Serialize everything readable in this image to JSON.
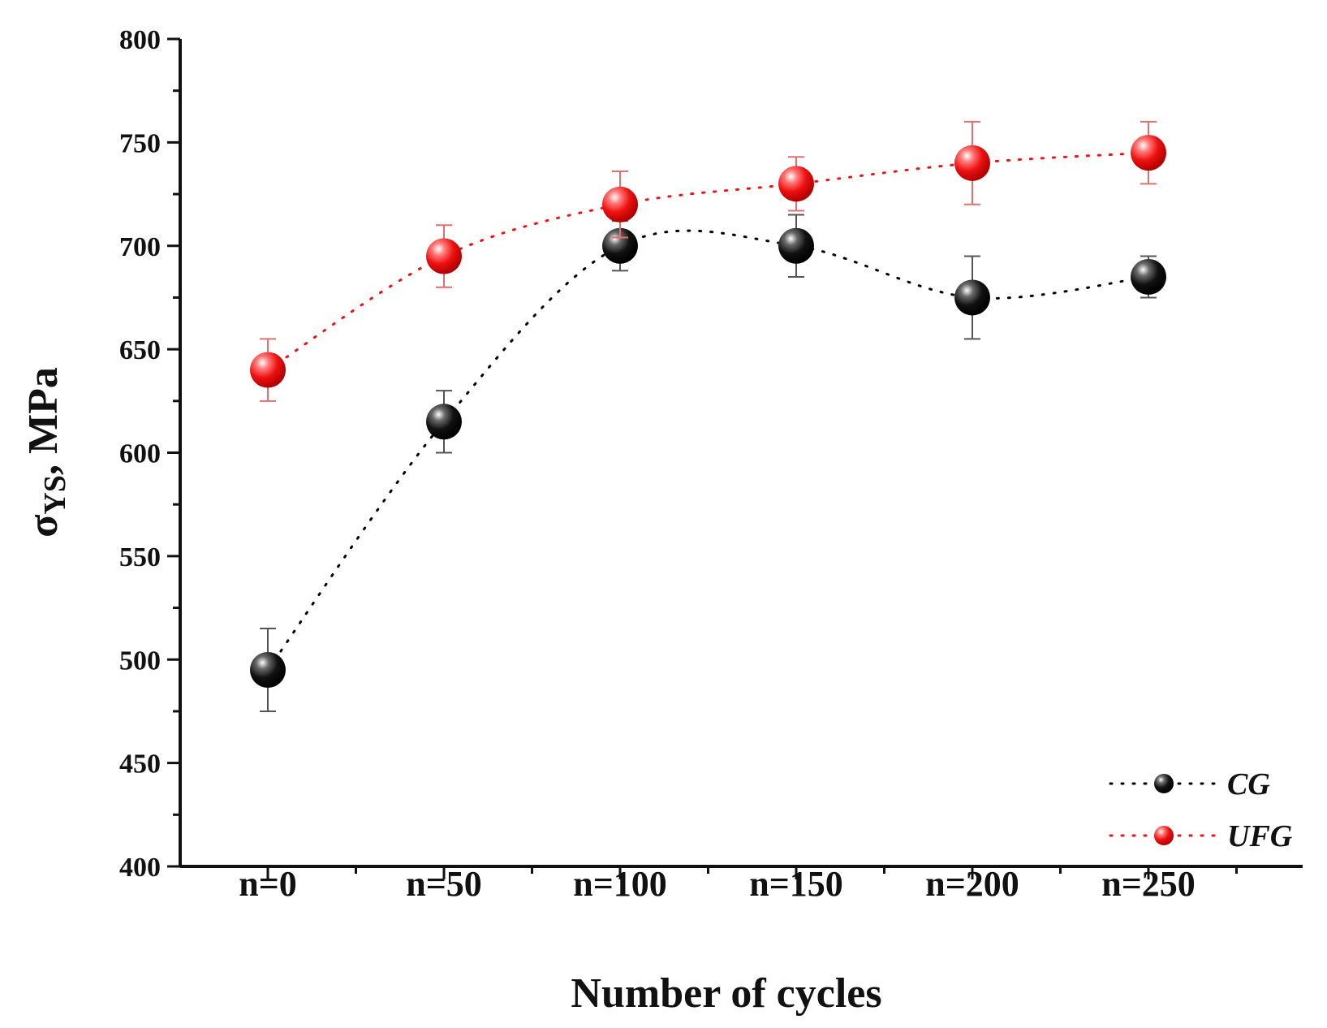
{
  "chart_data": {
    "type": "scatter",
    "title": "",
    "xlabel": "Number of cycles",
    "ylabel_symbol": "σ",
    "ylabel_subscript": "YS",
    "ylabel_rest": ", MPa",
    "categories": [
      "n=0",
      "n=50",
      "n=100",
      "n=150",
      "n=200",
      "n=250"
    ],
    "ylim": [
      400,
      800
    ],
    "yticks": [
      400,
      450,
      500,
      550,
      600,
      650,
      700,
      750,
      800
    ],
    "legend_position": "bottom-right",
    "series": [
      {
        "name": "CG",
        "color": "#000000",
        "line_style": "dotted",
        "values": [
          495,
          615,
          700,
          700,
          675,
          685
        ],
        "errors": [
          20,
          15,
          12,
          15,
          20,
          10
        ]
      },
      {
        "name": "UFG",
        "color": "#ee1111",
        "line_style": "dotted",
        "values": [
          640,
          695,
          720,
          730,
          740,
          745
        ],
        "errors": [
          15,
          15,
          16,
          13,
          20,
          15
        ]
      }
    ]
  }
}
